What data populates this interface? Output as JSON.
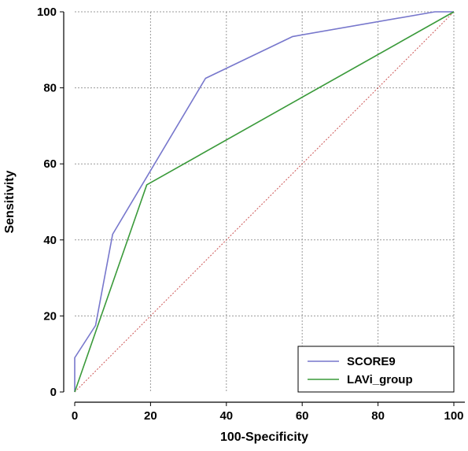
{
  "chart_data": {
    "type": "line",
    "xlabel": "100-Specificity",
    "ylabel": "Sensitivity",
    "xlim": [
      0,
      100
    ],
    "ylim": [
      0,
      100
    ],
    "x_ticks": [
      "0",
      "20",
      "40",
      "60",
      "80",
      "100"
    ],
    "y_ticks": [
      "0",
      "20",
      "40",
      "60",
      "80",
      "100"
    ],
    "grid": true,
    "legend_position": "bottom-right",
    "series": [
      {
        "name": "SCORE9",
        "color": "#7777cc",
        "points": [
          [
            0,
            0
          ],
          [
            0,
            9
          ],
          [
            5.5,
            17.5
          ],
          [
            10,
            41.5
          ],
          [
            34.5,
            82.5
          ],
          [
            57.5,
            93.5
          ],
          [
            95,
            100
          ],
          [
            100,
            100
          ]
        ]
      },
      {
        "name": "LAVi_group",
        "color": "#3a9a3a",
        "points": [
          [
            0,
            0
          ],
          [
            19,
            54.5
          ],
          [
            100,
            100
          ]
        ]
      }
    ],
    "reference_line": {
      "color": "#cc5555",
      "points": [
        [
          0,
          0
        ],
        [
          100,
          100
        ]
      ]
    }
  }
}
